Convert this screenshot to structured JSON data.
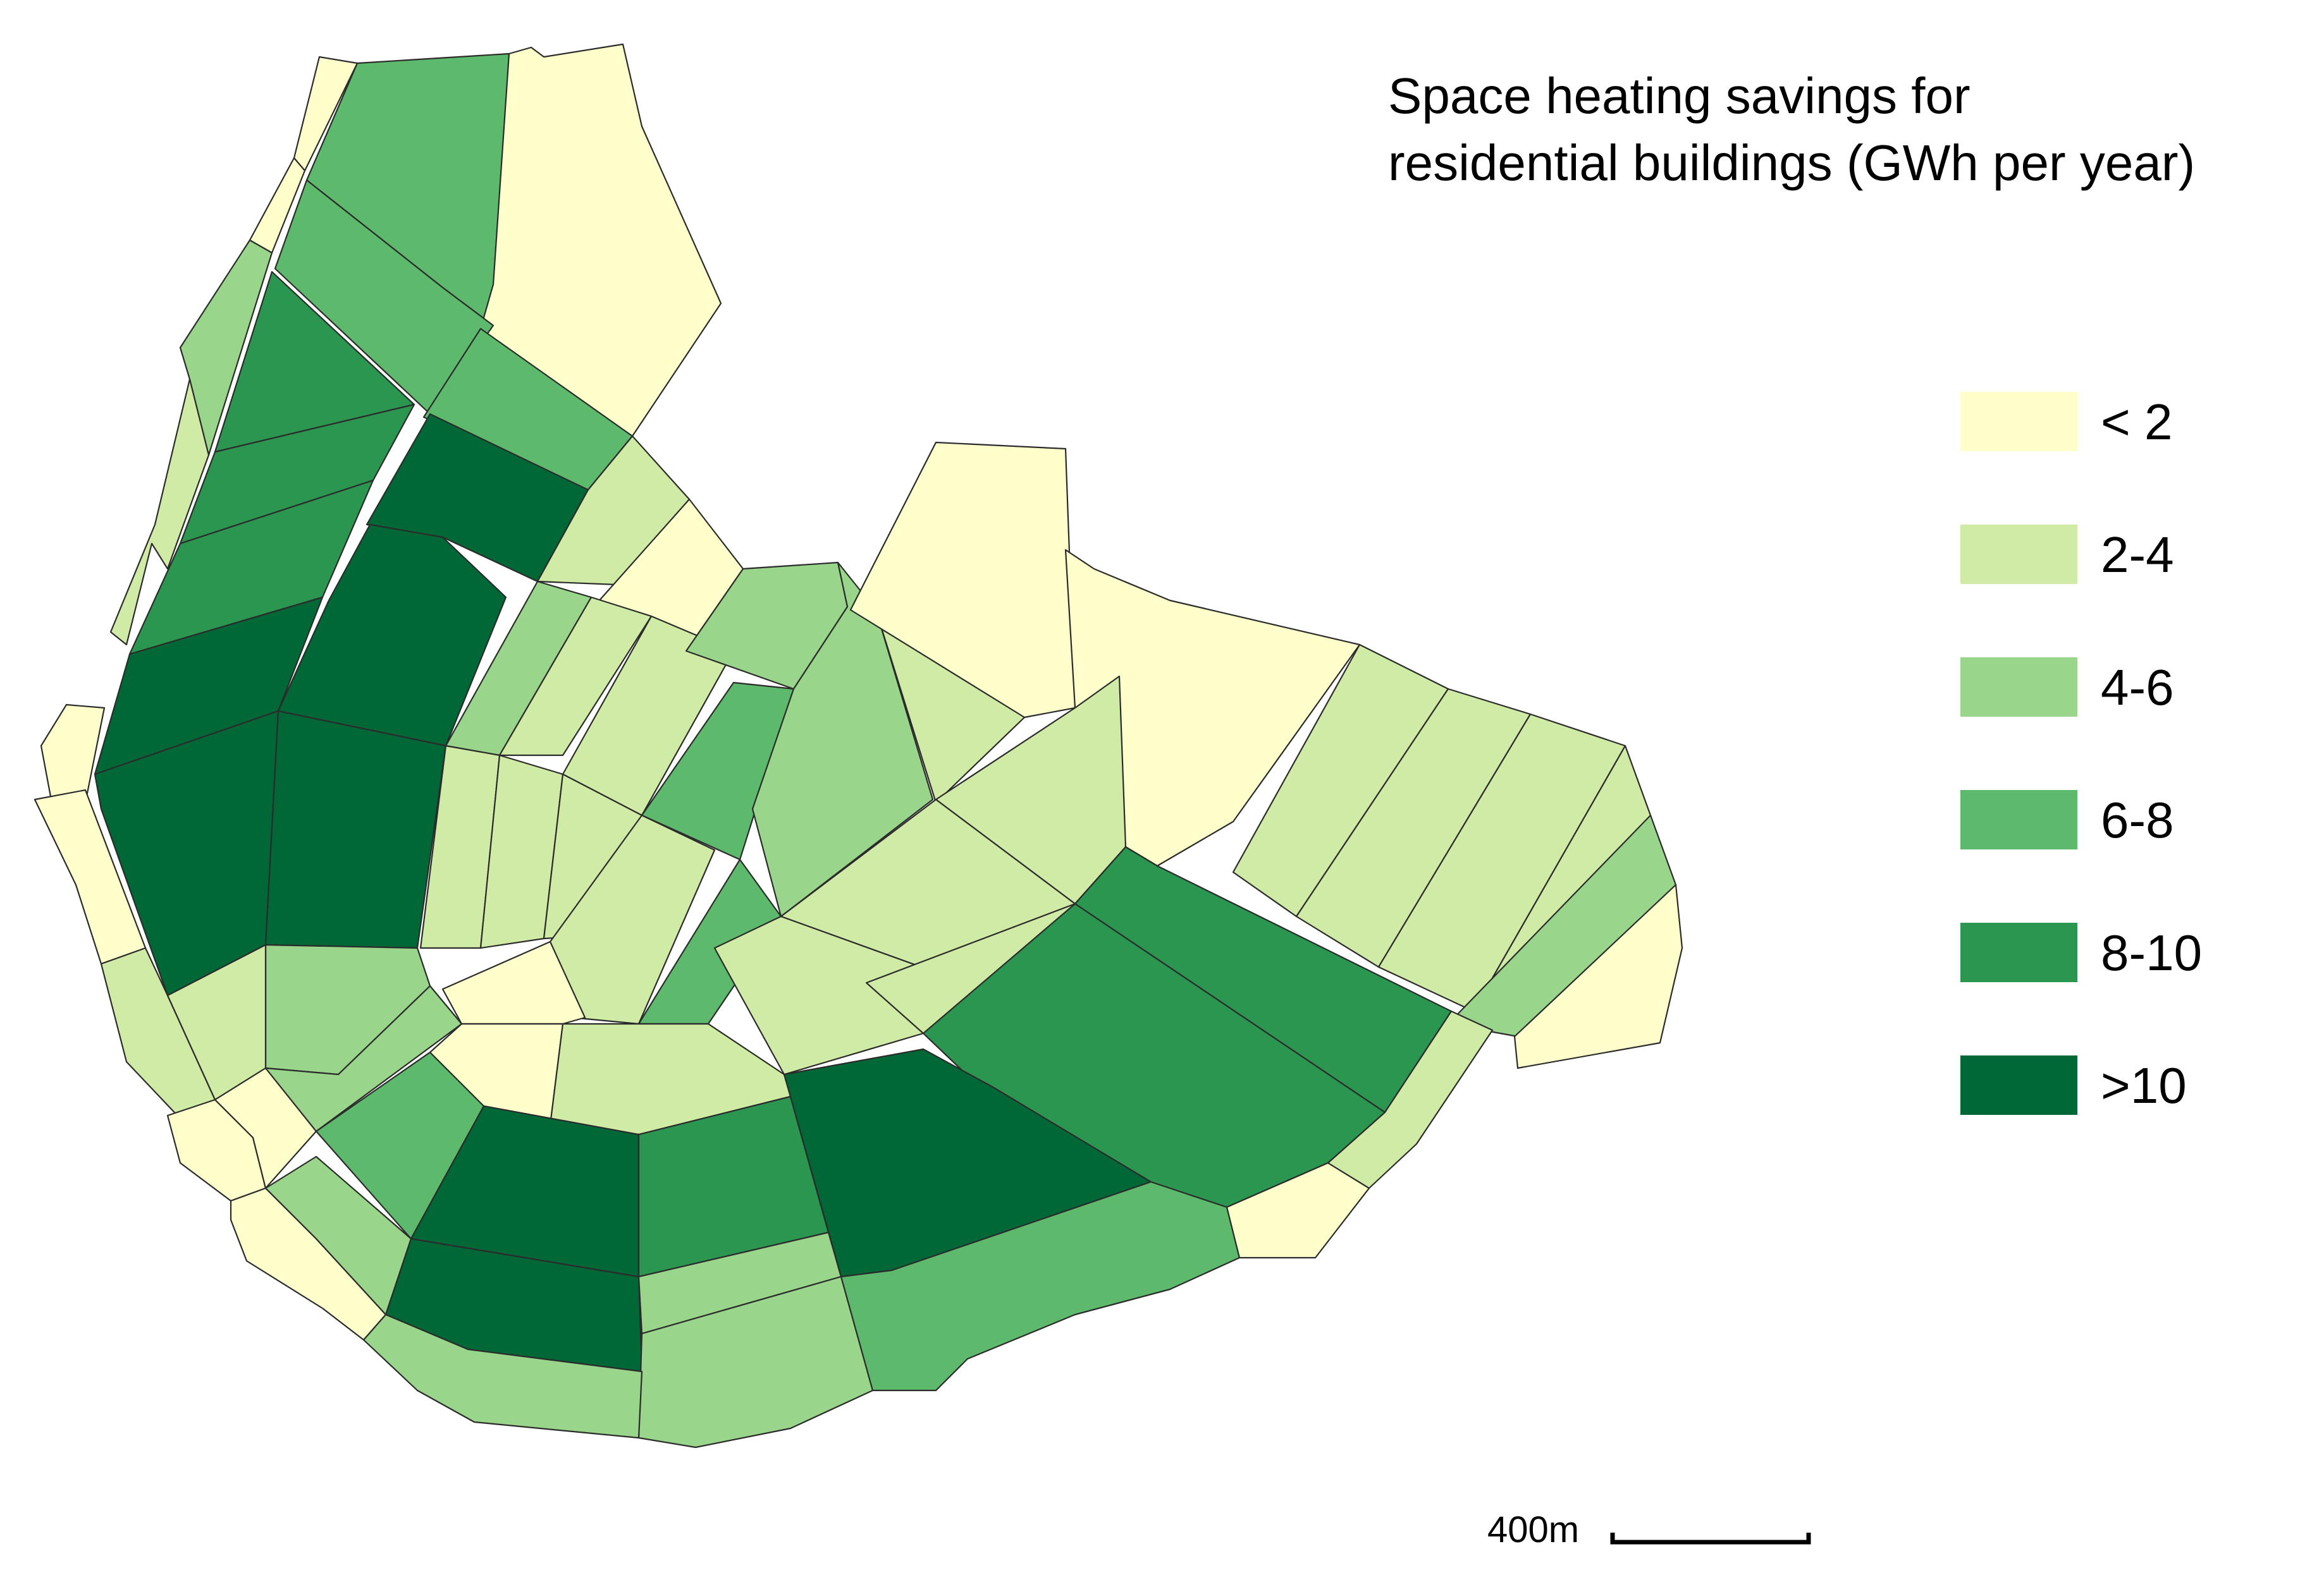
{
  "title": {
    "line1": "Space heating savings for",
    "line2": "residential buildings (GWh per year)"
  },
  "colors": {
    "lt2": "#ffffcc",
    "2-4": "#d0eba5",
    "4-6": "#99d58a",
    "6-8": "#5db96c",
    "8-10": "#2a9650",
    "gt10": "#006837"
  },
  "legend": {
    "items": [
      {
        "label": "< 2",
        "color": "#ffffcc"
      },
      {
        "label": "2-4",
        "color": "#d0eba5"
      },
      {
        "label": "4-6",
        "color": "#99d58a"
      },
      {
        "label": "6-8",
        "color": "#5db96c"
      },
      {
        "label": "8-10",
        "color": "#2a9650"
      },
      {
        "label": ">10",
        "color": "#006837"
      }
    ]
  },
  "scale_bar": {
    "label": "400m"
  }
}
